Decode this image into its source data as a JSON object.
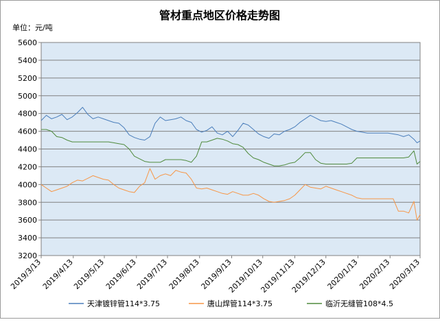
{
  "chart_data": {
    "type": "line",
    "title": "管材重点地区价格走势图",
    "unit_label": "单位：元/吨",
    "ylim": [
      3200,
      5600
    ],
    "y_ticks": [
      3200,
      3400,
      3600,
      3800,
      4000,
      4200,
      4400,
      4600,
      4800,
      5000,
      5200,
      5400,
      5600
    ],
    "x_range": [
      "2019/3/13",
      "2020/3/13"
    ],
    "x_ticks": [
      "2019/3/13",
      "2019/4/13",
      "2019/5/13",
      "2019/6/13",
      "2019/7/13",
      "2019/8/13",
      "2019/9/13",
      "2019/10/13",
      "2019/11/13",
      "2019/12/13",
      "2020/1/13",
      "2020/2/13",
      "2020/3/13"
    ],
    "grid": true,
    "legend_position": "bottom",
    "series": [
      {
        "name": "天津镀锌管114*3.75",
        "color": "#4a7ebb",
        "x": [
          "2019/3/13",
          "2019/3/18",
          "2019/3/23",
          "2019/3/28",
          "2019/4/2",
          "2019/4/7",
          "2019/4/12",
          "2019/4/17",
          "2019/4/22",
          "2019/4/27",
          "2019/5/2",
          "2019/5/7",
          "2019/5/12",
          "2019/5/17",
          "2019/5/22",
          "2019/5/27",
          "2019/6/1",
          "2019/6/6",
          "2019/6/11",
          "2019/6/16",
          "2019/6/21",
          "2019/6/26",
          "2019/7/1",
          "2019/7/6",
          "2019/7/11",
          "2019/7/16",
          "2019/7/21",
          "2019/7/26",
          "2019/7/31",
          "2019/8/5",
          "2019/8/10",
          "2019/8/15",
          "2019/8/20",
          "2019/8/25",
          "2019/8/30",
          "2019/9/4",
          "2019/9/9",
          "2019/9/14",
          "2019/9/19",
          "2019/9/24",
          "2019/9/29",
          "2019/10/4",
          "2019/10/9",
          "2019/10/14",
          "2019/10/19",
          "2019/10/24",
          "2019/10/29",
          "2019/11/3",
          "2019/11/8",
          "2019/11/13",
          "2019/11/18",
          "2019/11/23",
          "2019/11/28",
          "2019/12/3",
          "2019/12/8",
          "2019/12/13",
          "2019/12/18",
          "2019/12/23",
          "2019/12/28",
          "2020/1/2",
          "2020/1/7",
          "2020/1/12",
          "2020/1/17",
          "2020/1/22",
          "2020/1/27",
          "2020/2/1",
          "2020/2/6",
          "2020/2/11",
          "2020/2/16",
          "2020/2/21",
          "2020/2/26",
          "2020/3/2",
          "2020/3/7",
          "2020/3/10",
          "2020/3/13"
        ],
        "values": [
          4720,
          4780,
          4740,
          4760,
          4790,
          4730,
          4760,
          4810,
          4870,
          4790,
          4740,
          4760,
          4740,
          4720,
          4700,
          4690,
          4640,
          4560,
          4530,
          4510,
          4500,
          4540,
          4690,
          4760,
          4720,
          4730,
          4740,
          4760,
          4720,
          4700,
          4620,
          4590,
          4610,
          4650,
          4580,
          4560,
          4600,
          4540,
          4610,
          4690,
          4670,
          4620,
          4570,
          4540,
          4520,
          4570,
          4560,
          4600,
          4620,
          4650,
          4700,
          4740,
          4780,
          4750,
          4720,
          4710,
          4720,
          4700,
          4680,
          4650,
          4620,
          4600,
          4590,
          4580,
          4580,
          4580,
          4580,
          4580,
          4570,
          4560,
          4540,
          4560,
          4510,
          4470,
          4490
        ]
      },
      {
        "name": "唐山焊管114*3.75",
        "color": "#f79646",
        "x": [
          "2019/3/13",
          "2019/3/18",
          "2019/3/23",
          "2019/3/28",
          "2019/4/2",
          "2019/4/7",
          "2019/4/12",
          "2019/4/17",
          "2019/4/22",
          "2019/4/27",
          "2019/5/2",
          "2019/5/7",
          "2019/5/12",
          "2019/5/17",
          "2019/5/22",
          "2019/5/27",
          "2019/6/1",
          "2019/6/6",
          "2019/6/11",
          "2019/6/16",
          "2019/6/21",
          "2019/6/26",
          "2019/7/1",
          "2019/7/6",
          "2019/7/11",
          "2019/7/16",
          "2019/7/21",
          "2019/7/26",
          "2019/7/31",
          "2019/8/5",
          "2019/8/10",
          "2019/8/15",
          "2019/8/20",
          "2019/8/25",
          "2019/8/30",
          "2019/9/4",
          "2019/9/9",
          "2019/9/14",
          "2019/9/19",
          "2019/9/24",
          "2019/9/29",
          "2019/10/4",
          "2019/10/9",
          "2019/10/14",
          "2019/10/19",
          "2019/10/24",
          "2019/10/29",
          "2019/11/3",
          "2019/11/8",
          "2019/11/13",
          "2019/11/18",
          "2019/11/23",
          "2019/11/28",
          "2019/12/3",
          "2019/12/8",
          "2019/12/13",
          "2019/12/18",
          "2019/12/23",
          "2019/12/28",
          "2020/1/2",
          "2020/1/7",
          "2020/1/12",
          "2020/1/17",
          "2020/1/22",
          "2020/1/27",
          "2020/2/1",
          "2020/2/6",
          "2020/2/11",
          "2020/2/16",
          "2020/2/21",
          "2020/2/26",
          "2020/3/2",
          "2020/3/7",
          "2020/3/10",
          "2020/3/13"
        ],
        "values": [
          4000,
          3960,
          3920,
          3940,
          3960,
          3980,
          4020,
          4050,
          4040,
          4070,
          4100,
          4080,
          4060,
          4050,
          4000,
          3960,
          3940,
          3920,
          3910,
          3980,
          4020,
          4180,
          4060,
          4100,
          4120,
          4100,
          4160,
          4140,
          4130,
          4060,
          3960,
          3950,
          3960,
          3940,
          3920,
          3900,
          3890,
          3920,
          3900,
          3880,
          3880,
          3900,
          3880,
          3840,
          3810,
          3800,
          3810,
          3820,
          3840,
          3880,
          3940,
          4000,
          3970,
          3960,
          3950,
          3980,
          3960,
          3940,
          3920,
          3900,
          3880,
          3850,
          3840,
          3840,
          3840,
          3840,
          3840,
          3840,
          3840,
          3700,
          3700,
          3680,
          3810,
          3600,
          3660
        ]
      },
      {
        "name": "临沂无缝管108*4.5",
        "color": "#4f8a3c",
        "x": [
          "2019/3/13",
          "2019/3/18",
          "2019/3/23",
          "2019/3/28",
          "2019/4/2",
          "2019/4/7",
          "2019/4/12",
          "2019/4/17",
          "2019/4/22",
          "2019/4/27",
          "2019/5/2",
          "2019/5/7",
          "2019/5/12",
          "2019/5/17",
          "2019/5/22",
          "2019/5/27",
          "2019/6/1",
          "2019/6/6",
          "2019/6/11",
          "2019/6/16",
          "2019/6/21",
          "2019/6/26",
          "2019/7/1",
          "2019/7/6",
          "2019/7/11",
          "2019/7/16",
          "2019/7/21",
          "2019/7/26",
          "2019/7/31",
          "2019/8/5",
          "2019/8/10",
          "2019/8/15",
          "2019/8/20",
          "2019/8/25",
          "2019/8/30",
          "2019/9/4",
          "2019/9/9",
          "2019/9/14",
          "2019/9/19",
          "2019/9/24",
          "2019/9/29",
          "2019/10/4",
          "2019/10/9",
          "2019/10/14",
          "2019/10/19",
          "2019/10/24",
          "2019/10/29",
          "2019/11/3",
          "2019/11/8",
          "2019/11/13",
          "2019/11/18",
          "2019/11/23",
          "2019/11/28",
          "2019/12/3",
          "2019/12/8",
          "2019/12/13",
          "2019/12/18",
          "2019/12/23",
          "2019/12/28",
          "2020/1/2",
          "2020/1/7",
          "2020/1/12",
          "2020/1/17",
          "2020/1/22",
          "2020/1/27",
          "2020/2/1",
          "2020/2/6",
          "2020/2/11",
          "2020/2/16",
          "2020/2/21",
          "2020/2/26",
          "2020/3/2",
          "2020/3/7",
          "2020/3/10",
          "2020/3/13"
        ],
        "values": [
          4620,
          4620,
          4600,
          4540,
          4530,
          4500,
          4480,
          4480,
          4480,
          4480,
          4480,
          4480,
          4480,
          4480,
          4470,
          4460,
          4450,
          4400,
          4320,
          4290,
          4260,
          4250,
          4250,
          4250,
          4280,
          4280,
          4280,
          4280,
          4270,
          4250,
          4320,
          4480,
          4480,
          4500,
          4520,
          4510,
          4490,
          4460,
          4450,
          4420,
          4350,
          4300,
          4280,
          4250,
          4230,
          4210,
          4210,
          4220,
          4240,
          4250,
          4300,
          4360,
          4360,
          4280,
          4240,
          4230,
          4230,
          4230,
          4230,
          4230,
          4240,
          4300,
          4300,
          4300,
          4300,
          4300,
          4300,
          4300,
          4300,
          4300,
          4300,
          4310,
          4380,
          4230,
          4260
        ]
      }
    ]
  }
}
